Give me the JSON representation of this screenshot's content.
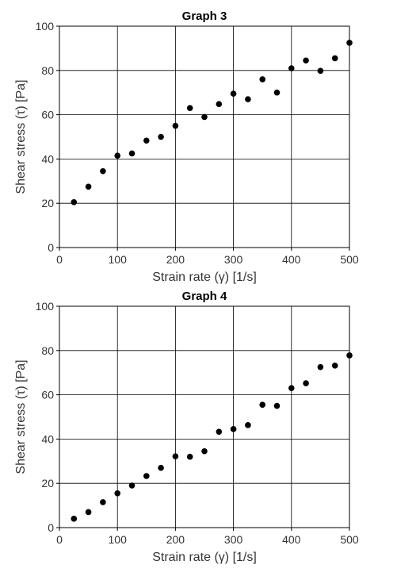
{
  "chart_data": [
    {
      "type": "scatter",
      "title": "Graph 3",
      "xlabel": "Strain rate (γ) [1/s]",
      "ylabel": "Shear stress (τ) [Pa]",
      "xlim": [
        0,
        500
      ],
      "ylim": [
        0,
        100
      ],
      "xticks": [
        0,
        100,
        200,
        300,
        400,
        500
      ],
      "yticks": [
        0,
        20,
        40,
        60,
        80,
        100
      ],
      "grid": true,
      "series": [
        {
          "color": "#000000",
          "x": [
            25,
            50,
            75,
            100,
            125,
            150,
            175,
            200,
            225,
            250,
            275,
            300,
            325,
            350,
            375,
            400,
            425,
            450,
            475,
            500
          ],
          "y": [
            20.5,
            27.5,
            34.5,
            41.5,
            42.5,
            48.3,
            50,
            55,
            63,
            59,
            64.8,
            69.5,
            67,
            76,
            70,
            81,
            84.5,
            79.8,
            85.5,
            92.5
          ]
        }
      ]
    },
    {
      "type": "scatter",
      "title": "Graph 4",
      "xlabel": "Strain rate (γ) [1/s]",
      "ylabel": "Shear stress (τ) [Pa]",
      "xlim": [
        0,
        500
      ],
      "ylim": [
        0,
        100
      ],
      "xticks": [
        0,
        100,
        200,
        300,
        400,
        500
      ],
      "yticks": [
        0,
        20,
        40,
        60,
        80,
        100
      ],
      "grid": true,
      "series": [
        {
          "color": "#000000",
          "x": [
            25,
            50,
            75,
            100,
            125,
            150,
            175,
            200,
            225,
            250,
            275,
            300,
            325,
            350,
            375,
            400,
            425,
            450,
            475,
            500
          ],
          "y": [
            4,
            7,
            11.5,
            15.5,
            19,
            23.3,
            27,
            32.2,
            32,
            34.5,
            43.3,
            44.5,
            46.3,
            55.5,
            55,
            63,
            65.2,
            72.5,
            73.2,
            77.8
          ]
        }
      ]
    }
  ]
}
